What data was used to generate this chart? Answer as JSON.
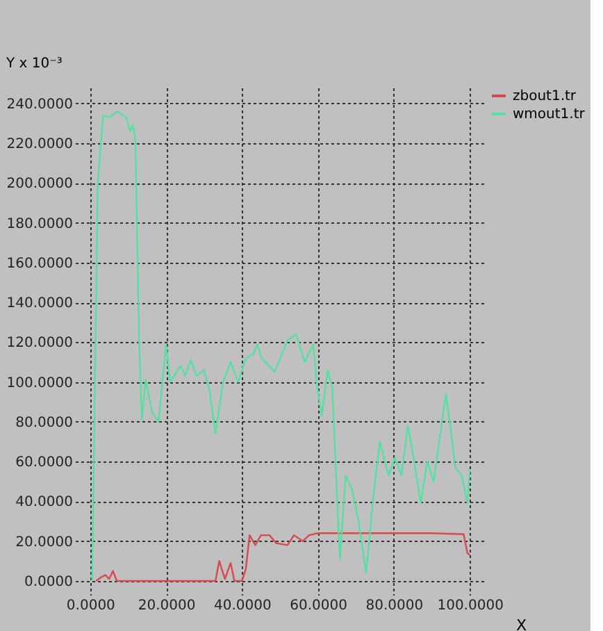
{
  "chart_data": {
    "type": "line",
    "ylabel": "Y x 10⁻³",
    "xlabel": "X",
    "xlim": [
      -4,
      104
    ],
    "ylim": [
      -7,
      248
    ],
    "xticks": [
      {
        "value": 0,
        "label": "0.0000"
      },
      {
        "value": 20,
        "label": "20.0000"
      },
      {
        "value": 40,
        "label": "40.0000"
      },
      {
        "value": 60,
        "label": "60.0000"
      },
      {
        "value": 80,
        "label": "80.0000"
      },
      {
        "value": 100,
        "label": "100.0000"
      }
    ],
    "yticks": [
      {
        "value": 0,
        "label": "0.0000"
      },
      {
        "value": 20,
        "label": "20.0000"
      },
      {
        "value": 40,
        "label": "40.0000"
      },
      {
        "value": 60,
        "label": "60.0000"
      },
      {
        "value": 80,
        "label": "80.0000"
      },
      {
        "value": 100,
        "label": "100.0000"
      },
      {
        "value": 120,
        "label": "120.0000"
      },
      {
        "value": 140,
        "label": "140.0000"
      },
      {
        "value": 160,
        "label": "160.0000"
      },
      {
        "value": 180,
        "label": "180.0000"
      },
      {
        "value": 200,
        "label": "200.0000"
      },
      {
        "value": 220,
        "label": "220.0000"
      },
      {
        "value": 240,
        "label": "240.0000"
      }
    ],
    "grid": true,
    "legend": "top right",
    "line_style": "solid",
    "marker": "none",
    "series": [
      {
        "name": "zbout1.tr",
        "color": "#d84850",
        "x": [
          1.5,
          3,
          4,
          5,
          6,
          7,
          10,
          20,
          33,
          34,
          35.5,
          37,
          38,
          40,
          41,
          42,
          43.5,
          45,
          47.2,
          49,
          52,
          53.7,
          56,
          57.7,
          60,
          70,
          80,
          90,
          98.4,
          99.4,
          100
        ],
        "values": [
          0,
          2,
          3,
          1,
          5,
          0,
          0,
          0,
          0,
          10,
          1,
          9,
          0,
          0,
          6,
          23,
          18,
          23,
          23,
          19,
          18,
          23,
          20,
          23,
          24,
          24,
          24,
          24,
          23.5,
          14,
          13
        ]
      },
      {
        "name": "wmout1.tr",
        "color": "#55e0a0",
        "x": [
          0.5,
          2,
          3.4,
          5,
          7.2,
          9.5,
          10.5,
          11.2,
          11.9,
          12.9,
          13.6,
          14.6,
          16.3,
          18,
          20,
          21,
          23.8,
          25,
          26.5,
          28,
          30,
          31.5,
          33,
          35,
          37,
          39,
          41,
          43,
          44,
          45.2,
          48.6,
          52,
          54.3,
          56.5,
          58.8,
          59.7,
          61,
          62.6,
          63.8,
          65,
          65.8,
          67.3,
          69,
          70.7,
          72.7,
          74.6,
          76.3,
          78.6,
          80.3,
          82,
          83.7,
          85.4,
          87.1,
          88.8,
          90.5,
          92.2,
          93.7,
          95,
          96.2,
          97.9,
          99.4,
          100
        ],
        "values": [
          0,
          200,
          234,
          233,
          236,
          233,
          226,
          229,
          222,
          120,
          81,
          101,
          85,
          80,
          119,
          100,
          108,
          103,
          111,
          103,
          106,
          95,
          74,
          100,
          110,
          100,
          112,
          114,
          119,
          112,
          105,
          121,
          124,
          110,
          119,
          99,
          83,
          106,
          97,
          44,
          11,
          53,
          46,
          30,
          4,
          42,
          70,
          53,
          62,
          53,
          78,
          60,
          39,
          60,
          50,
          73,
          94,
          76,
          57,
          53,
          39,
          56
        ]
      }
    ]
  }
}
